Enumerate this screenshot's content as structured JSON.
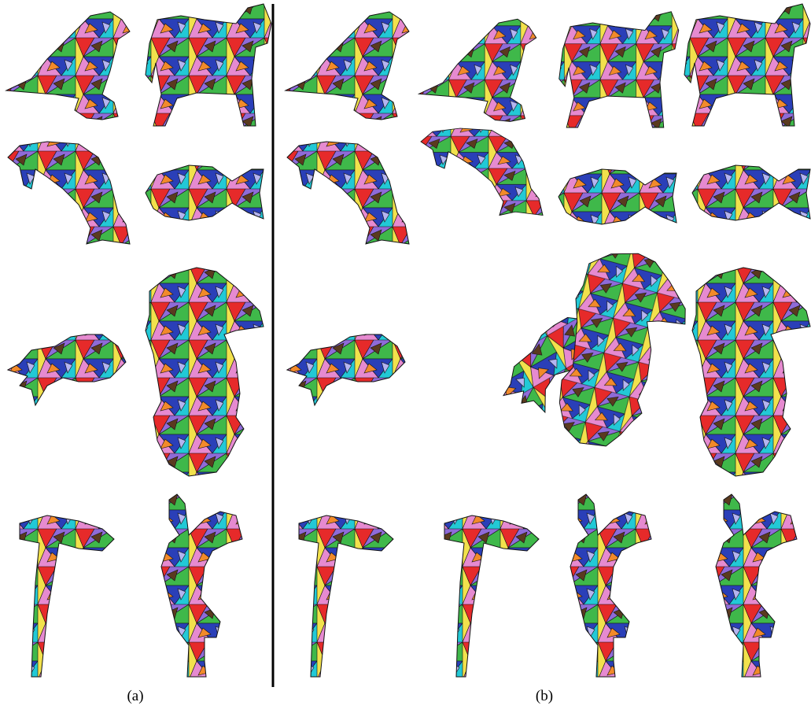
{
  "figure": {
    "labels": {
      "a": "(a)",
      "b": "(b)"
    }
  }
}
